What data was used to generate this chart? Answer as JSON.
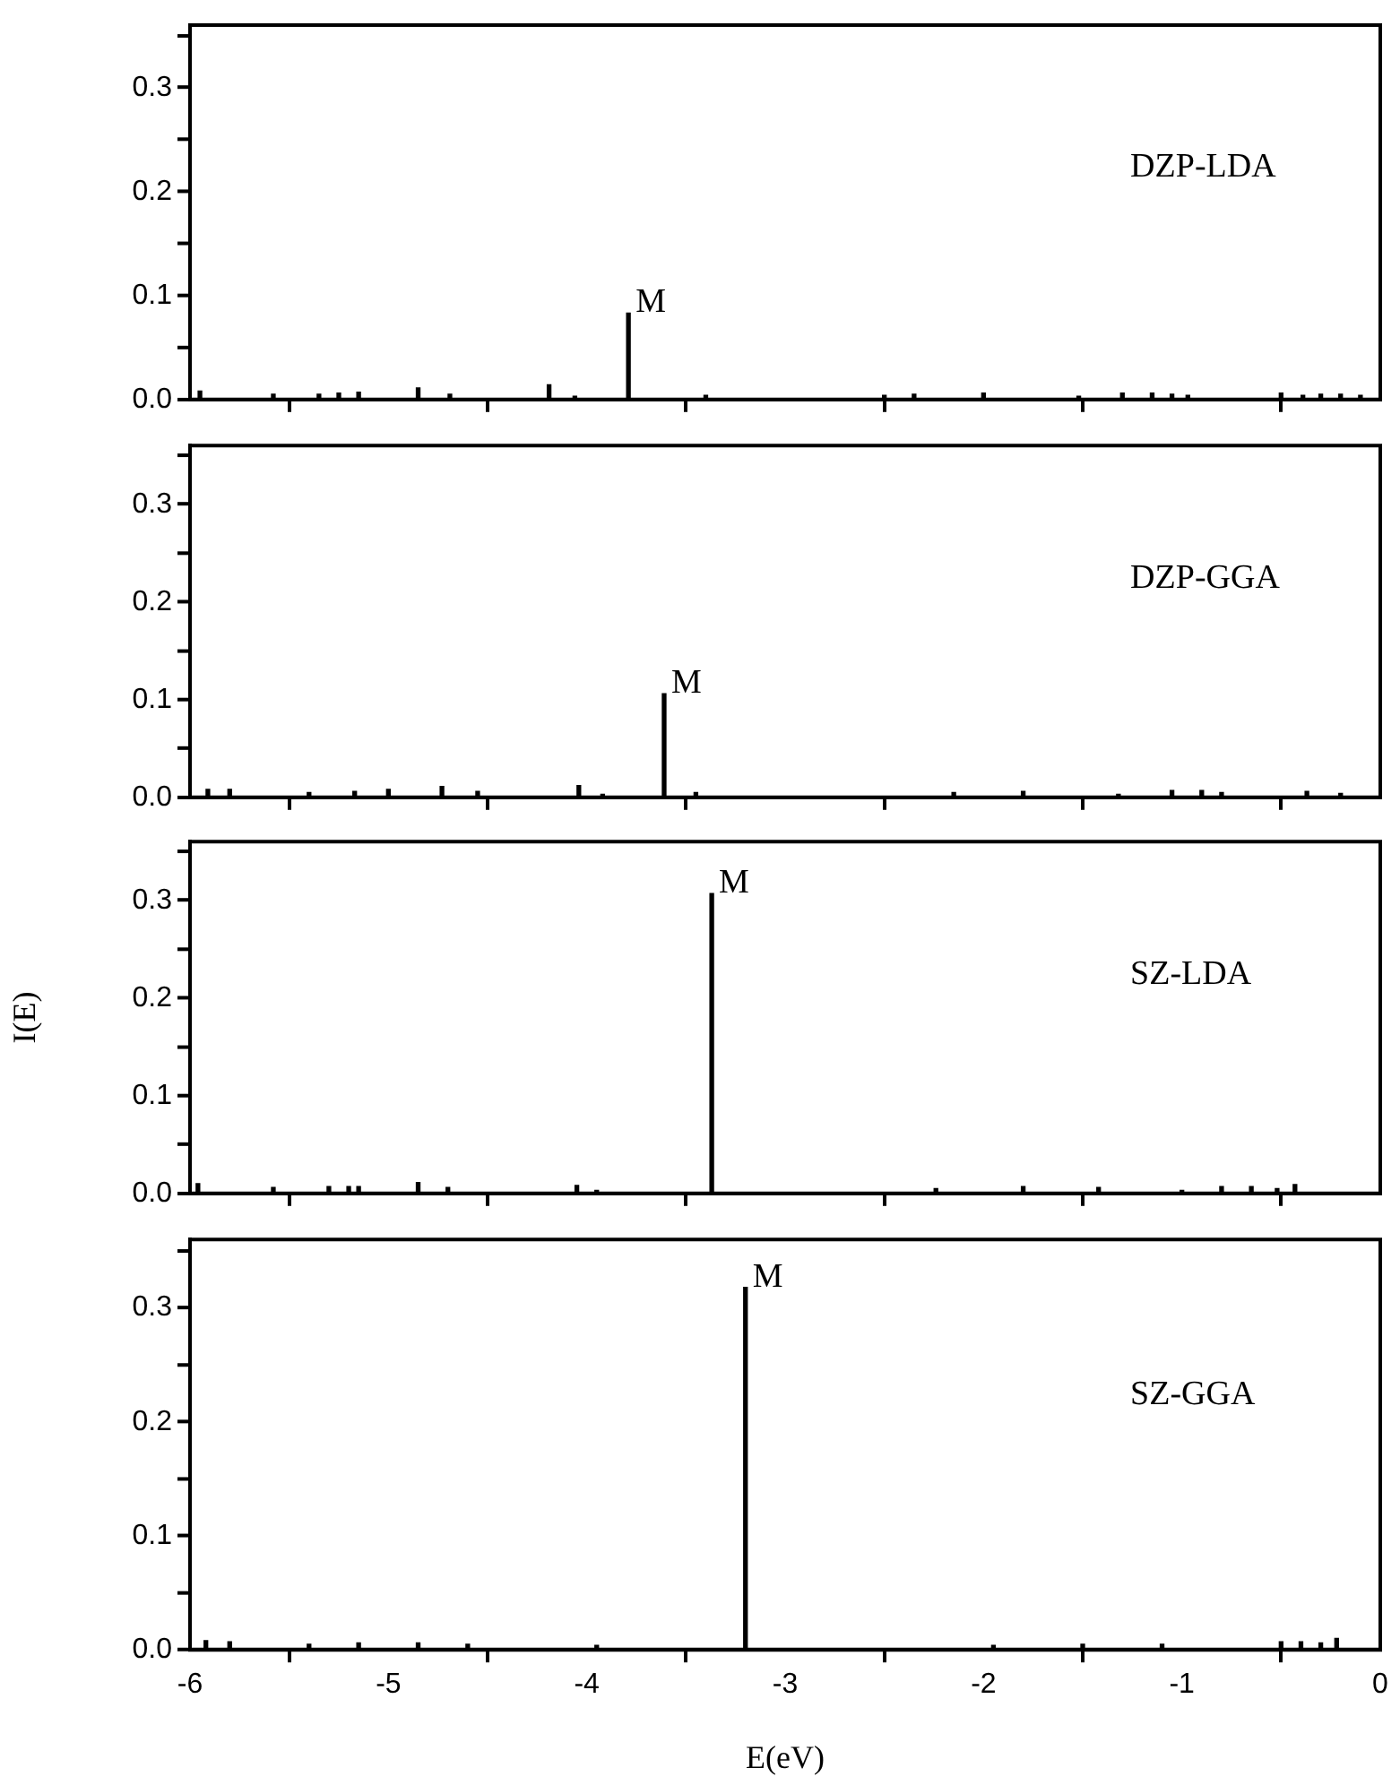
{
  "chart_data": [
    {
      "type": "bar",
      "x": [
        -5.95,
        -5.58,
        -5.35,
        -5.25,
        -5.15,
        -4.85,
        -4.69,
        -4.19,
        -4.06,
        -3.79,
        -3.4,
        -2.5,
        -2.35,
        -2.0,
        -1.52,
        -1.3,
        -1.15,
        -1.05,
        -0.97,
        -0.5,
        -0.39,
        -0.3,
        -0.2,
        -0.1
      ],
      "values": [
        0.008,
        0.005,
        0.005,
        0.006,
        0.007,
        0.011,
        0.005,
        0.014,
        0.003,
        0.083,
        0.004,
        0.004,
        0.005,
        0.006,
        0.003,
        0.006,
        0.006,
        0.005,
        0.004,
        0.006,
        0.004,
        0.005,
        0.005,
        0.004
      ],
      "color": "#000000",
      "xlim": [
        -6,
        0
      ],
      "ylim": [
        0,
        0.36
      ],
      "xticks": [
        {
          "value": -6,
          "label": null
        },
        {
          "value": -5,
          "label": null
        },
        {
          "value": -4,
          "label": null
        },
        {
          "value": -3,
          "label": null
        },
        {
          "value": -2,
          "label": null
        },
        {
          "value": -1,
          "label": null
        },
        {
          "value": 0,
          "label": null
        }
      ],
      "yticks": [
        {
          "value": 0,
          "label": "0.0"
        },
        {
          "value": 0.05,
          "label": null
        },
        {
          "value": 0.1,
          "label": "0.1"
        },
        {
          "value": 0.15,
          "label": null
        },
        {
          "value": 0.2,
          "label": "0.2"
        },
        {
          "value": 0.25,
          "label": null
        },
        {
          "value": 0.3,
          "label": "0.3"
        },
        {
          "value": 0.35,
          "label": null
        }
      ],
      "tick_labels": "y",
      "annotations": [
        "DZP-LDA",
        {
          "text": "M",
          "x": -3.79,
          "y": 0.083
        }
      ]
    },
    {
      "type": "bar",
      "x": [
        -5.91,
        -5.8,
        -5.4,
        -5.17,
        -5.0,
        -4.73,
        -4.55,
        -4.04,
        -3.92,
        -3.61,
        -3.45,
        -2.15,
        -1.8,
        -1.32,
        -1.05,
        -0.9,
        -0.8,
        -0.37,
        -0.2
      ],
      "values": [
        0.008,
        0.008,
        0.005,
        0.006,
        0.008,
        0.011,
        0.006,
        0.012,
        0.003,
        0.106,
        0.005,
        0.005,
        0.006,
        0.003,
        0.007,
        0.007,
        0.005,
        0.006,
        0.004
      ],
      "color": "#000000",
      "xlim": [
        -6,
        0
      ],
      "ylim": [
        0,
        0.36
      ],
      "xticks": [
        {
          "value": -6,
          "label": null
        },
        {
          "value": -5,
          "label": null
        },
        {
          "value": -4,
          "label": null
        },
        {
          "value": -3,
          "label": null
        },
        {
          "value": -2,
          "label": null
        },
        {
          "value": -1,
          "label": null
        },
        {
          "value": 0,
          "label": null
        }
      ],
      "yticks": [
        {
          "value": 0,
          "label": "0.0"
        },
        {
          "value": 0.05,
          "label": null
        },
        {
          "value": 0.1,
          "label": "0.1"
        },
        {
          "value": 0.15,
          "label": null
        },
        {
          "value": 0.2,
          "label": "0.2"
        },
        {
          "value": 0.25,
          "label": null
        },
        {
          "value": 0.3,
          "label": "0.3"
        },
        {
          "value": 0.35,
          "label": null
        }
      ],
      "tick_labels": "y",
      "annotations": [
        "DZP-GGA",
        {
          "text": "M",
          "x": -3.61,
          "y": 0.106
        }
      ]
    },
    {
      "type": "bar",
      "x": [
        -5.96,
        -5.58,
        -5.3,
        -5.2,
        -5.15,
        -4.85,
        -4.7,
        -4.05,
        -3.95,
        -3.37,
        -2.24,
        -1.8,
        -1.42,
        -1.0,
        -0.8,
        -0.65,
        -0.52,
        -0.43
      ],
      "values": [
        0.01,
        0.006,
        0.007,
        0.007,
        0.007,
        0.011,
        0.006,
        0.008,
        0.003,
        0.307,
        0.005,
        0.007,
        0.006,
        0.003,
        0.007,
        0.007,
        0.005,
        0.009
      ],
      "color": "#000000",
      "xlim": [
        -6,
        0
      ],
      "ylim": [
        0,
        0.36
      ],
      "ylabel": "I(E)",
      "xticks": [
        {
          "value": -6,
          "label": null
        },
        {
          "value": -5,
          "label": null
        },
        {
          "value": -4,
          "label": null
        },
        {
          "value": -3,
          "label": null
        },
        {
          "value": -2,
          "label": null
        },
        {
          "value": -1,
          "label": null
        },
        {
          "value": 0,
          "label": null
        }
      ],
      "yticks": [
        {
          "value": 0,
          "label": "0.0"
        },
        {
          "value": 0.05,
          "label": null
        },
        {
          "value": 0.1,
          "label": "0.1"
        },
        {
          "value": 0.15,
          "label": null
        },
        {
          "value": 0.2,
          "label": "0.2"
        },
        {
          "value": 0.25,
          "label": null
        },
        {
          "value": 0.3,
          "label": "0.3"
        },
        {
          "value": 0.35,
          "label": null
        }
      ],
      "tick_labels": "y",
      "annotations": [
        "SZ-LDA",
        {
          "text": "M",
          "x": -3.37,
          "y": 0.307
        }
      ]
    },
    {
      "type": "bar",
      "x": [
        -5.92,
        -5.8,
        -5.4,
        -5.15,
        -4.85,
        -4.6,
        -3.95,
        -3.2,
        -1.95,
        -1.5,
        -1.1,
        -0.5,
        -0.4,
        -0.3,
        -0.22
      ],
      "values": [
        0.008,
        0.007,
        0.005,
        0.006,
        0.006,
        0.005,
        0.004,
        0.318,
        0.004,
        0.005,
        0.005,
        0.007,
        0.007,
        0.006,
        0.01
      ],
      "color": "#000000",
      "xlim": [
        -6,
        0
      ],
      "ylim": [
        0,
        0.36
      ],
      "xlabel": "E(eV)",
      "xticks": [
        -6,
        -5,
        -4,
        -3,
        -2,
        -1,
        0
      ],
      "yticks": [
        {
          "value": 0,
          "label": "0.0"
        },
        {
          "value": 0.05,
          "label": null
        },
        {
          "value": 0.1,
          "label": "0.1"
        },
        {
          "value": 0.15,
          "label": null
        },
        {
          "value": 0.2,
          "label": "0.2"
        },
        {
          "value": 0.25,
          "label": null
        },
        {
          "value": 0.3,
          "label": "0.3"
        },
        {
          "value": 0.35,
          "label": null
        }
      ],
      "annotations": [
        "SZ-GGA",
        {
          "text": "M",
          "x": -3.2,
          "y": 0.318
        }
      ]
    }
  ]
}
